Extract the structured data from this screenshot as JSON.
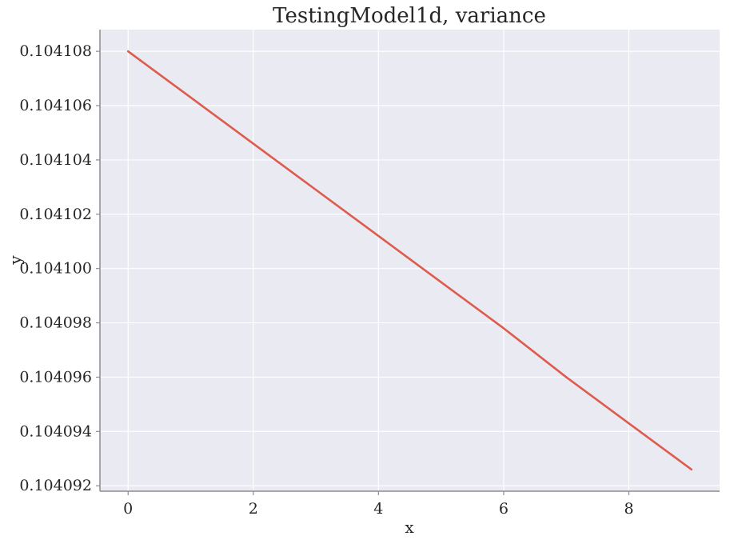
{
  "chart_data": {
    "type": "line",
    "title": "TestingModel1d, variance",
    "xlabel": "x",
    "ylabel": "y",
    "xlim": [
      -0.45,
      9.45
    ],
    "ylim": [
      0.1040918,
      0.1041088
    ],
    "x_ticks": [
      0,
      2,
      4,
      6,
      8
    ],
    "x_tick_labels": [
      "0",
      "2",
      "4",
      "6",
      "8"
    ],
    "y_ticks": [
      0.104092,
      0.104094,
      0.104096,
      0.104098,
      0.1041,
      0.104102,
      0.104104,
      0.104106,
      0.104108
    ],
    "y_tick_labels": [
      "0.104092",
      "0.104094",
      "0.104096",
      "0.104098",
      "0.104100",
      "0.104102",
      "0.104104",
      "0.104106",
      "0.104108"
    ],
    "grid": true,
    "series": [
      {
        "x": [
          0,
          1,
          2,
          3,
          4,
          5,
          6,
          7,
          8,
          9
        ],
        "y": [
          0.104108,
          0.1041063,
          0.1041046,
          0.1041029,
          0.1041012,
          0.1040995,
          0.1040978,
          0.104096,
          0.1040943,
          0.1040926
        ],
        "color": "#dd5c4d"
      }
    ],
    "colors": {
      "plot_background": "#eaeaf2",
      "grid": "#ffffff",
      "axis": "#8c8c8c",
      "text": "#262626"
    }
  }
}
